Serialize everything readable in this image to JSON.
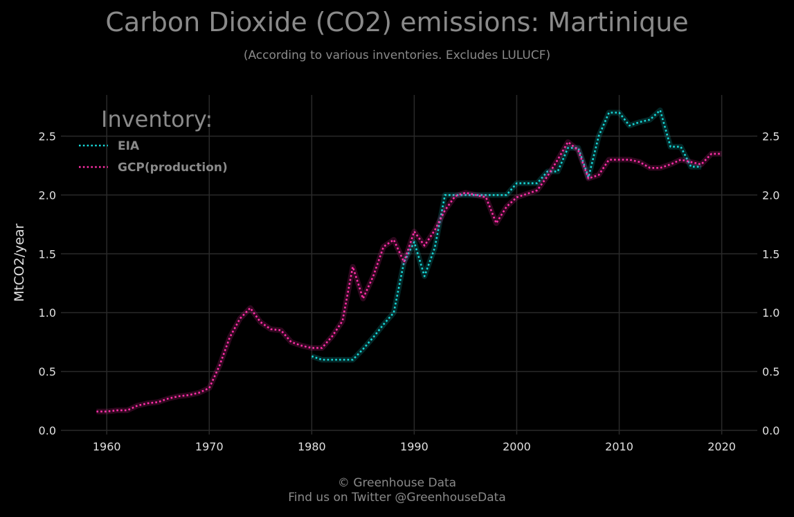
{
  "title": "Carbon Dioxide (CO2) emissions: Martinique",
  "subtitle": "(According to various inventories. Excludes LULUCF)",
  "footer": {
    "line1": "© Greenhouse Data",
    "line2": "Find us on Twitter @GreenhouseData"
  },
  "colors": {
    "background": "#000000",
    "grid": "#2a2a2a",
    "text": "#8a8a8a",
    "tick_text": "#e0e0e0",
    "eia": "#17d6d6",
    "gcp": "#ff2fa8"
  },
  "chart_data": {
    "type": "line",
    "title": "Carbon Dioxide (CO2) emissions: Martinique",
    "subtitle": "(According to various inventories. Excludes LULUCF)",
    "xlabel": "",
    "ylabel": "MtCO2/year",
    "xlim": [
      1956,
      2023
    ],
    "ylim": [
      0,
      2.85
    ],
    "x_ticks": [
      1960,
      1970,
      1980,
      1990,
      2000,
      2010,
      2020
    ],
    "y_ticks": [
      0.0,
      0.5,
      1.0,
      1.5,
      2.0,
      2.5
    ],
    "y_tick_labels": [
      "0.0",
      "0.5",
      "1.0",
      "1.5",
      "2.0",
      "2.5"
    ],
    "grid": true,
    "legend_title": "Inventory:",
    "legend_position": "top-left",
    "series": [
      {
        "name": "EIA",
        "color": "#17d6d6",
        "x": [
          1980,
          1981,
          1982,
          1983,
          1984,
          1985,
          1986,
          1987,
          1988,
          1989,
          1990,
          1991,
          1992,
          1993,
          1994,
          1995,
          1996,
          1997,
          1998,
          1999,
          2000,
          2001,
          2002,
          2003,
          2004,
          2005,
          2006,
          2007,
          2008,
          2009,
          2010,
          2011,
          2012,
          2013,
          2014,
          2015,
          2016,
          2017,
          2018
        ],
        "y": [
          0.63,
          0.6,
          0.6,
          0.6,
          0.6,
          0.69,
          0.79,
          0.9,
          1.0,
          1.43,
          1.6,
          1.31,
          1.55,
          2.0,
          2.0,
          2.0,
          2.0,
          2.0,
          2.0,
          2.0,
          2.1,
          2.1,
          2.1,
          2.2,
          2.2,
          2.4,
          2.4,
          2.15,
          2.5,
          2.7,
          2.7,
          2.59,
          2.62,
          2.64,
          2.72,
          2.41,
          2.41,
          2.24,
          2.24
        ]
      },
      {
        "name": "GCP(production)",
        "color": "#ff2fa8",
        "x": [
          1959,
          1960,
          1961,
          1962,
          1963,
          1964,
          1965,
          1966,
          1967,
          1968,
          1969,
          1970,
          1971,
          1972,
          1973,
          1974,
          1975,
          1976,
          1977,
          1978,
          1979,
          1980,
          1981,
          1982,
          1983,
          1984,
          1985,
          1986,
          1987,
          1988,
          1989,
          1990,
          1991,
          1992,
          1993,
          1994,
          1995,
          1996,
          1997,
          1998,
          1999,
          2000,
          2001,
          2002,
          2003,
          2004,
          2005,
          2006,
          2007,
          2008,
          2009,
          2010,
          2011,
          2012,
          2013,
          2014,
          2015,
          2016,
          2017,
          2018,
          2019,
          2020
        ],
        "y": [
          0.16,
          0.16,
          0.17,
          0.17,
          0.21,
          0.23,
          0.24,
          0.27,
          0.29,
          0.3,
          0.32,
          0.36,
          0.55,
          0.79,
          0.95,
          1.04,
          0.92,
          0.86,
          0.85,
          0.75,
          0.72,
          0.7,
          0.7,
          0.8,
          0.93,
          1.39,
          1.12,
          1.31,
          1.56,
          1.62,
          1.43,
          1.69,
          1.57,
          1.7,
          1.87,
          1.99,
          2.02,
          2.0,
          1.98,
          1.76,
          1.9,
          1.98,
          2.01,
          2.04,
          2.16,
          2.3,
          2.45,
          2.38,
          2.14,
          2.17,
          2.3,
          2.3,
          2.3,
          2.28,
          2.23,
          2.23,
          2.26,
          2.3,
          2.28,
          2.26,
          2.35,
          2.35
        ]
      }
    ]
  }
}
